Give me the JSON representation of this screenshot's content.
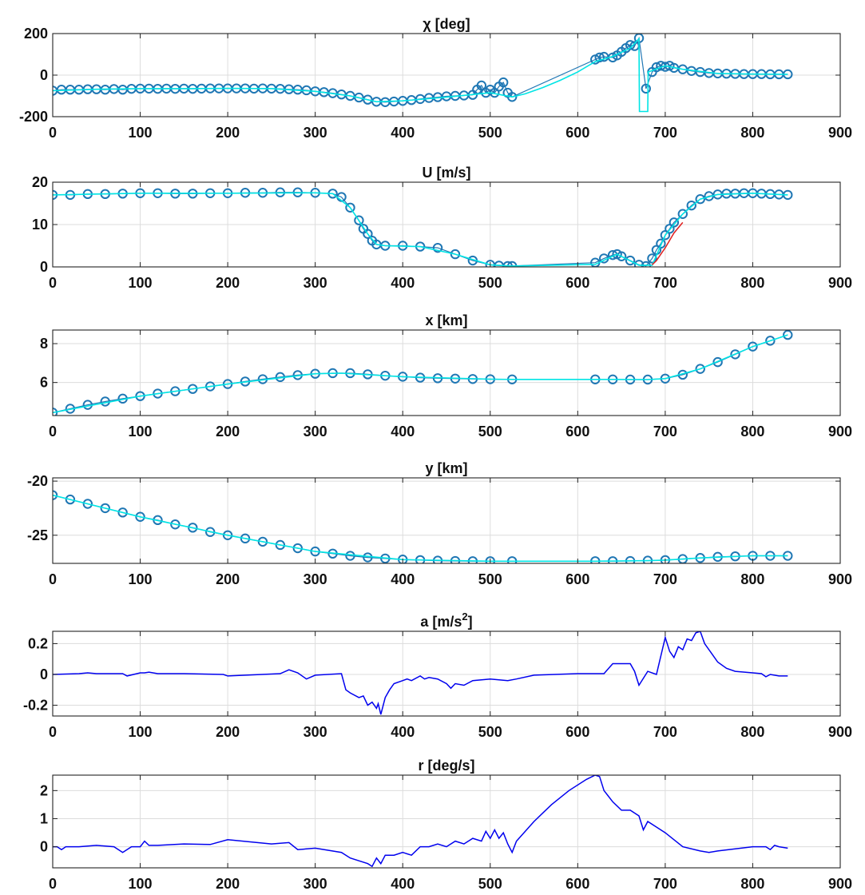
{
  "chart_data": [
    {
      "type": "line",
      "title": "χ [deg]",
      "xlim": [
        0,
        900
      ],
      "ylim": [
        -200,
        200
      ],
      "x_ticks": [
        0,
        100,
        200,
        300,
        400,
        500,
        600,
        700,
        800,
        900
      ],
      "y_ticks": [
        -200,
        0,
        200
      ],
      "grid": true,
      "series": [
        {
          "role": "measurement-markers",
          "color": "#1f77b4",
          "x": [
            0,
            10,
            20,
            30,
            40,
            50,
            60,
            70,
            80,
            90,
            100,
            110,
            120,
            130,
            140,
            150,
            160,
            170,
            180,
            190,
            200,
            210,
            220,
            230,
            240,
            250,
            260,
            270,
            280,
            290,
            300,
            310,
            320,
            330,
            340,
            350,
            360,
            370,
            380,
            390,
            400,
            410,
            420,
            430,
            440,
            450,
            460,
            470,
            480,
            485,
            490,
            495,
            500,
            505,
            510,
            515,
            520,
            525,
            620,
            625,
            630,
            640,
            645,
            650,
            655,
            660,
            665,
            670,
            678,
            685,
            690,
            695,
            700,
            705,
            710,
            720,
            730,
            740,
            750,
            760,
            770,
            780,
            790,
            800,
            810,
            820,
            830,
            840
          ],
          "y": [
            -75,
            -70,
            -70,
            -70,
            -68,
            -68,
            -70,
            -67,
            -70,
            -66,
            -65,
            -65,
            -66,
            -65,
            -66,
            -65,
            -66,
            -65,
            -64,
            -64,
            -64,
            -64,
            -64,
            -65,
            -64,
            -65,
            -66,
            -68,
            -70,
            -73,
            -78,
            -82,
            -87,
            -93,
            -100,
            -108,
            -118,
            -128,
            -130,
            -127,
            -124,
            -120,
            -115,
            -110,
            -106,
            -102,
            -100,
            -98,
            -95,
            -70,
            -50,
            -85,
            -70,
            -85,
            -55,
            -35,
            -85,
            -105,
            75,
            85,
            88,
            85,
            95,
            112,
            130,
            145,
            140,
            178,
            -65,
            15,
            38,
            45,
            40,
            45,
            35,
            28,
            20,
            15,
            10,
            8,
            7,
            6,
            5,
            5,
            5,
            4,
            4,
            4
          ]
        },
        {
          "role": "estimate-line",
          "color": "#00e5e5",
          "x": [
            0,
            50,
            100,
            150,
            200,
            250,
            300,
            340,
            370,
            400,
            450,
            500,
            525,
            540,
            560,
            580,
            600,
            620,
            640,
            660,
            670,
            670.5,
            680,
            680.5,
            700,
            720,
            760,
            800,
            840
          ],
          "y": [
            -75,
            -68,
            -65,
            -65,
            -64,
            -65,
            -78,
            -100,
            -128,
            -124,
            -106,
            -85,
            -105,
            -90,
            -60,
            -25,
            15,
            65,
            90,
            130,
            175,
            -175,
            -175,
            15,
            45,
            28,
            8,
            5,
            4
          ]
        }
      ]
    },
    {
      "type": "line",
      "title": "U [m/s]",
      "xlim": [
        0,
        900
      ],
      "ylim": [
        0,
        20
      ],
      "x_ticks": [
        0,
        100,
        200,
        300,
        400,
        500,
        600,
        700,
        800,
        900
      ],
      "y_ticks": [
        0,
        10,
        20
      ],
      "grid": true,
      "series": [
        {
          "role": "measurement-markers",
          "color": "#1f77b4",
          "x": [
            0,
            20,
            40,
            60,
            80,
            100,
            120,
            140,
            160,
            180,
            200,
            220,
            240,
            260,
            280,
            300,
            320,
            330,
            340,
            350,
            355,
            360,
            365,
            370,
            380,
            400,
            420,
            440,
            460,
            480,
            500,
            510,
            520,
            525,
            620,
            630,
            640,
            645,
            650,
            660,
            670,
            678,
            685,
            690,
            695,
            700,
            705,
            710,
            720,
            730,
            740,
            750,
            760,
            770,
            780,
            790,
            800,
            810,
            820,
            830,
            840
          ],
          "y": [
            17,
            17,
            17.2,
            17.2,
            17.3,
            17.4,
            17.4,
            17.3,
            17.3,
            17.4,
            17.4,
            17.5,
            17.5,
            17.6,
            17.6,
            17.5,
            17.3,
            16.5,
            14,
            11,
            9,
            7.8,
            6.2,
            5.3,
            5,
            5,
            4.8,
            4.5,
            3,
            1.5,
            0.5,
            0.3,
            0.2,
            0.2,
            1,
            2,
            2.8,
            3,
            2.5,
            1.5,
            0.5,
            0.2,
            2,
            4,
            5.5,
            7.5,
            9,
            10.5,
            12.5,
            14.5,
            16,
            16.7,
            17.1,
            17.3,
            17.3,
            17.4,
            17.4,
            17.3,
            17.2,
            17.1,
            17
          ]
        },
        {
          "role": "estimate-line",
          "color": "#00e5e5",
          "x": [
            0,
            100,
            200,
            300,
            320,
            340,
            360,
            370,
            380,
            420,
            460,
            500,
            525,
            620,
            645,
            670,
            685,
            700,
            720,
            740,
            760,
            800,
            840
          ],
          "y": [
            17,
            17.4,
            17.4,
            17.5,
            17.3,
            14,
            7.8,
            5.3,
            5,
            4.8,
            3,
            0.5,
            0.2,
            0.6,
            3,
            0.4,
            0.4,
            7.5,
            12.5,
            16,
            17.1,
            17.4,
            17
          ]
        },
        {
          "role": "reference-line",
          "color": "#e02020",
          "x": [
            685,
            690,
            695,
            700,
            710,
            720
          ],
          "y": [
            0.5,
            1.5,
            3,
            4.5,
            8,
            10.5
          ]
        }
      ]
    },
    {
      "type": "line",
      "title": "x [km]",
      "xlim": [
        0,
        900
      ],
      "ylim": [
        4.3,
        8.7
      ],
      "x_ticks": [
        0,
        100,
        200,
        300,
        400,
        500,
        600,
        700,
        800,
        900
      ],
      "y_ticks": [
        6,
        8
      ],
      "grid": true,
      "series": [
        {
          "role": "measurement-markers",
          "color": "#1f77b4",
          "x": [
            0,
            20,
            40,
            60,
            80,
            100,
            120,
            140,
            160,
            180,
            200,
            220,
            240,
            260,
            280,
            300,
            320,
            340,
            360,
            380,
            400,
            420,
            440,
            460,
            480,
            500,
            525,
            620,
            640,
            660,
            680,
            700,
            720,
            740,
            760,
            780,
            800,
            820,
            840
          ],
          "y": [
            4.45,
            4.65,
            4.85,
            5.02,
            5.17,
            5.3,
            5.43,
            5.55,
            5.67,
            5.8,
            5.92,
            6.05,
            6.17,
            6.28,
            6.38,
            6.45,
            6.48,
            6.48,
            6.42,
            6.35,
            6.3,
            6.25,
            6.22,
            6.2,
            6.18,
            6.17,
            6.16,
            6.16,
            6.16,
            6.15,
            6.15,
            6.2,
            6.4,
            6.7,
            7.05,
            7.45,
            7.85,
            8.15,
            8.45
          ]
        },
        {
          "role": "estimate-line",
          "color": "#00e5e5",
          "x": [
            0,
            100,
            200,
            300,
            330,
            400,
            500,
            525,
            620,
            680,
            700,
            740,
            800,
            840
          ],
          "y": [
            4.45,
            5.3,
            5.92,
            6.45,
            6.48,
            6.3,
            6.17,
            6.16,
            6.16,
            6.15,
            6.2,
            6.7,
            7.85,
            8.45
          ]
        }
      ]
    },
    {
      "type": "line",
      "title": "y [km]",
      "xlim": [
        0,
        900
      ],
      "ylim": [
        -27.6,
        -19.7
      ],
      "x_ticks": [
        0,
        100,
        200,
        300,
        400,
        500,
        600,
        700,
        800,
        900
      ],
      "y_ticks": [
        -25,
        -20
      ],
      "grid": true,
      "series": [
        {
          "role": "measurement-markers",
          "color": "#1f77b4",
          "x": [
            0,
            20,
            40,
            60,
            80,
            100,
            120,
            140,
            160,
            180,
            200,
            220,
            240,
            260,
            280,
            300,
            320,
            340,
            360,
            380,
            400,
            420,
            440,
            460,
            480,
            500,
            525,
            620,
            640,
            660,
            680,
            700,
            720,
            740,
            760,
            780,
            800,
            820,
            840
          ],
          "y": [
            -21.3,
            -21.7,
            -22.1,
            -22.5,
            -22.9,
            -23.3,
            -23.6,
            -24,
            -24.3,
            -24.7,
            -25,
            -25.3,
            -25.6,
            -25.9,
            -26.2,
            -26.5,
            -26.7,
            -26.9,
            -27.05,
            -27.15,
            -27.25,
            -27.3,
            -27.35,
            -27.38,
            -27.4,
            -27.4,
            -27.4,
            -27.4,
            -27.4,
            -27.38,
            -27.35,
            -27.3,
            -27.2,
            -27.1,
            -27.0,
            -26.95,
            -26.9,
            -26.9,
            -26.9
          ]
        },
        {
          "role": "estimate-line",
          "color": "#00e5e5",
          "x": [
            0,
            100,
            200,
            300,
            400,
            500,
            525,
            620,
            680,
            700,
            740,
            800,
            840
          ],
          "y": [
            -21.3,
            -23.3,
            -25,
            -26.5,
            -27.25,
            -27.4,
            -27.4,
            -27.4,
            -27.35,
            -27.3,
            -27.1,
            -26.9,
            -26.9
          ]
        }
      ]
    },
    {
      "type": "line",
      "title": "a [m/s",
      "title_sup": "2",
      "title_suffix": "]",
      "xlim": [
        0,
        900
      ],
      "ylim": [
        -0.27,
        0.28
      ],
      "x_ticks": [
        0,
        100,
        200,
        300,
        400,
        500,
        600,
        700,
        800,
        900
      ],
      "y_ticks": [
        -0.2,
        0,
        0.2
      ],
      "grid": true,
      "series": [
        {
          "color": "#0000ee",
          "x": [
            0,
            30,
            40,
            50,
            80,
            85,
            100,
            105,
            110,
            120,
            150,
            195,
            200,
            260,
            270,
            280,
            290,
            300,
            330,
            335,
            340,
            350,
            355,
            360,
            365,
            370,
            372,
            375,
            380,
            385,
            390,
            400,
            405,
            410,
            420,
            425,
            430,
            440,
            450,
            455,
            460,
            470,
            480,
            500,
            520,
            530,
            550,
            600,
            620,
            630,
            640,
            660,
            665,
            670,
            680,
            690,
            700,
            705,
            710,
            715,
            720,
            725,
            730,
            735,
            740,
            745,
            760,
            770,
            780,
            800,
            810,
            815,
            820,
            830,
            840
          ],
          "y": [
            0,
            0.005,
            0.01,
            0.005,
            0.005,
            -0.01,
            0.01,
            0.01,
            0.015,
            0.005,
            0.005,
            0,
            -0.01,
            0.005,
            0.03,
            0.01,
            -0.03,
            -0.005,
            0.005,
            -0.1,
            -0.12,
            -0.15,
            -0.14,
            -0.2,
            -0.18,
            -0.22,
            -0.19,
            -0.26,
            -0.15,
            -0.1,
            -0.06,
            -0.04,
            -0.03,
            -0.04,
            -0.01,
            -0.03,
            -0.02,
            -0.03,
            -0.06,
            -0.09,
            -0.06,
            -0.07,
            -0.04,
            -0.03,
            -0.04,
            -0.03,
            -0.005,
            0.005,
            0.005,
            0.005,
            0.07,
            0.07,
            0.02,
            -0.07,
            0.02,
            0,
            0.24,
            0.15,
            0.11,
            0.18,
            0.16,
            0.23,
            0.22,
            0.27,
            0.28,
            0.2,
            0.08,
            0.04,
            0.02,
            0.01,
            0.005,
            -0.015,
            0,
            -0.01,
            -0.01
          ]
        }
      ]
    },
    {
      "type": "line",
      "title": "r [deg/s]",
      "xlim": [
        0,
        900
      ],
      "ylim": [
        -0.75,
        2.55
      ],
      "x_ticks": [
        0,
        100,
        200,
        300,
        400,
        500,
        600,
        700,
        800,
        900
      ],
      "y_ticks": [
        0,
        1,
        2
      ],
      "grid": true,
      "series": [
        {
          "color": "#0000ee",
          "x": [
            0,
            5,
            10,
            15,
            20,
            30,
            50,
            70,
            80,
            90,
            100,
            105,
            110,
            120,
            150,
            180,
            200,
            250,
            270,
            280,
            300,
            330,
            340,
            350,
            360,
            365,
            370,
            375,
            380,
            390,
            400,
            410,
            420,
            430,
            440,
            450,
            460,
            470,
            480,
            490,
            495,
            500,
            505,
            510,
            515,
            520,
            525,
            530,
            550,
            570,
            590,
            610,
            620,
            625,
            630,
            640,
            650,
            660,
            670,
            675,
            680,
            690,
            700,
            720,
            740,
            750,
            760,
            800,
            815,
            820,
            825,
            830,
            840
          ],
          "y": [
            0,
            0,
            -0.1,
            0,
            0,
            0,
            0.05,
            0,
            -0.2,
            0,
            0,
            0.2,
            0.05,
            0.05,
            0.1,
            0.08,
            0.25,
            0.1,
            0.15,
            -0.1,
            -0.05,
            -0.2,
            -0.4,
            -0.5,
            -0.6,
            -0.7,
            -0.4,
            -0.6,
            -0.3,
            -0.3,
            -0.2,
            -0.3,
            0,
            0,
            0.1,
            0,
            0.2,
            0.1,
            0.3,
            0.2,
            0.55,
            0.3,
            0.6,
            0.3,
            0.5,
            0.1,
            -0.2,
            0.2,
            0.9,
            1.5,
            2.0,
            2.4,
            2.55,
            2.5,
            2.0,
            1.6,
            1.3,
            1.3,
            1.1,
            0.6,
            0.9,
            0.7,
            0.5,
            0,
            -0.15,
            -0.2,
            -0.15,
            0,
            0,
            -0.1,
            0.05,
            0,
            -0.05
          ]
        }
      ]
    }
  ]
}
